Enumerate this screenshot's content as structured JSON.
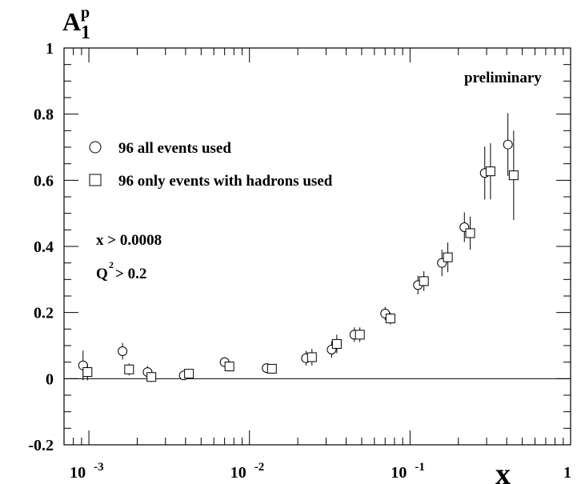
{
  "chart_data": {
    "type": "scatter",
    "xscale": "log",
    "xlim": [
      0.0007,
      1
    ],
    "ylim": [
      -0.2,
      1
    ],
    "ylabel": "A",
    "ylabel_sup": "p",
    "ylabel_sub": "1",
    "xlabel": "x",
    "annotation": "preliminary",
    "cuts": [
      "x > 0.0008",
      "Q",
      "2",
      " > 0.2"
    ],
    "yticks": [
      {
        "v": -0.2,
        "label": "-0.2"
      },
      {
        "v": 0,
        "label": "0"
      },
      {
        "v": 0.2,
        "label": "0.2"
      },
      {
        "v": 0.4,
        "label": "0.4"
      },
      {
        "v": 0.6,
        "label": "0.6"
      },
      {
        "v": 0.8,
        "label": "0.8"
      },
      {
        "v": 1,
        "label": "1"
      }
    ],
    "xticks": [
      {
        "v": 0.001,
        "base": "10",
        "exp": "-3"
      },
      {
        "v": 0.01,
        "base": "10",
        "exp": "-2"
      },
      {
        "v": 0.1,
        "base": "10",
        "exp": "-1"
      },
      {
        "v": 1,
        "base": "1",
        "exp": ""
      }
    ],
    "series": [
      {
        "name": "96 all events used",
        "marker": "circle",
        "points": [
          {
            "x": 0.00092,
            "y": 0.04,
            "err": 0.045
          },
          {
            "x": 0.00162,
            "y": 0.083,
            "err": 0.025
          },
          {
            "x": 0.00232,
            "y": 0.02,
            "err": 0.018
          },
          {
            "x": 0.0039,
            "y": 0.01,
            "err": 0.012
          },
          {
            "x": 0.007,
            "y": 0.05,
            "err": 0.015
          },
          {
            "x": 0.0128,
            "y": 0.032,
            "err": 0.012
          },
          {
            "x": 0.0225,
            "y": 0.062,
            "err": 0.022
          },
          {
            "x": 0.0325,
            "y": 0.088,
            "err": 0.025
          },
          {
            "x": 0.045,
            "y": 0.133,
            "err": 0.022
          },
          {
            "x": 0.07,
            "y": 0.197,
            "err": 0.02
          },
          {
            "x": 0.112,
            "y": 0.283,
            "err": 0.028
          },
          {
            "x": 0.158,
            "y": 0.35,
            "err": 0.04
          },
          {
            "x": 0.218,
            "y": 0.458,
            "err": 0.045
          },
          {
            "x": 0.292,
            "y": 0.622,
            "err": 0.08
          },
          {
            "x": 0.407,
            "y": 0.708,
            "err": 0.095
          }
        ]
      },
      {
        "name": "96 only events with hadrons used",
        "marker": "square",
        "points": [
          {
            "x": 0.00098,
            "y": 0.02,
            "err": 0.025
          },
          {
            "x": 0.00178,
            "y": 0.028,
            "err": 0.018
          },
          {
            "x": 0.00245,
            "y": 0.005,
            "err": 0.015
          },
          {
            "x": 0.0042,
            "y": 0.015,
            "err": 0.008
          },
          {
            "x": 0.0075,
            "y": 0.037,
            "err": 0.015
          },
          {
            "x": 0.0138,
            "y": 0.03,
            "err": 0.01
          },
          {
            "x": 0.0245,
            "y": 0.065,
            "err": 0.025
          },
          {
            "x": 0.035,
            "y": 0.105,
            "err": 0.028
          },
          {
            "x": 0.0487,
            "y": 0.133,
            "err": 0.022
          },
          {
            "x": 0.0755,
            "y": 0.182,
            "err": 0.018
          },
          {
            "x": 0.122,
            "y": 0.295,
            "err": 0.03
          },
          {
            "x": 0.172,
            "y": 0.367,
            "err": 0.045
          },
          {
            "x": 0.237,
            "y": 0.44,
            "err": 0.05
          },
          {
            "x": 0.317,
            "y": 0.627,
            "err": 0.085
          },
          {
            "x": 0.442,
            "y": 0.615,
            "err": 0.135
          }
        ]
      }
    ]
  }
}
